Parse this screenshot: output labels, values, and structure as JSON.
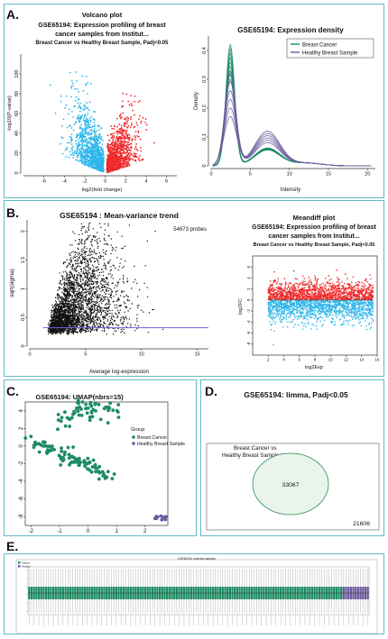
{
  "panels": {
    "a": "A.",
    "b": "B.",
    "c": "C.",
    "d": "D.",
    "e": "E."
  },
  "colors": {
    "border": "#63b9c9",
    "up": "#ee2b2b",
    "down": "#2eb6ea",
    "black": "#111111",
    "breast_cancer": "#1d8c63",
    "healthy": "#6c5b9e",
    "trend_line": "#6a6adf",
    "venn_fill": "#e9f5ec",
    "venn_stroke": "#2e8b57"
  },
  "chart_data": [
    {
      "id": "volcano",
      "type": "scatter",
      "title": "Volcano plot",
      "subtitle": "GSE65194: Expression profiling of breast cancer samples from Institut...",
      "subtitle2": "Breast Cancer vs Healthy Breast Sample, Padj<0.05",
      "xlabel": "log2(fold change)",
      "ylabel": "-log10(P-value)",
      "xlim": [
        -8,
        7
      ],
      "ylim": [
        0,
        120
      ],
      "xticks": [
        -6,
        -4,
        -2,
        0,
        2,
        4,
        6
      ],
      "yticks": [
        0,
        20,
        40,
        60,
        80,
        100
      ],
      "series": [
        {
          "name": "Down",
          "color": "#2eb6ea",
          "x_range": [
            -6,
            0
          ],
          "peak_y": 95
        },
        {
          "name": "Up",
          "color": "#ee2b2b",
          "x_range": [
            0,
            5.5
          ],
          "peak_y": 75
        }
      ]
    },
    {
      "id": "density",
      "type": "line",
      "title": "GSE65194: Expression density",
      "xlabel": "Intensity",
      "ylabel": "Density",
      "xlim": [
        0,
        21
      ],
      "ylim": [
        0,
        0.45
      ],
      "xticks": [
        0,
        5,
        10,
        15,
        20
      ],
      "yticks": [
        0.0,
        0.1,
        0.2,
        0.3,
        0.4
      ],
      "series": [
        {
          "name": "Breast Cancer",
          "color": "#1d8c63",
          "peak_x": 2.4,
          "peak_y": 0.42
        },
        {
          "name": "Healthy Breast Sample",
          "color": "#6c5b9e",
          "peak_x": 2.5,
          "peak_y": 0.36
        }
      ]
    },
    {
      "id": "meanvar",
      "type": "scatter",
      "title": "GSE65194 : Mean-variance trend",
      "annotation": "54673 probes",
      "xlabel": "Average log-expression",
      "ylabel": "sqrt(sigma)",
      "xlim": [
        0,
        16
      ],
      "ylim": [
        0,
        2.2
      ],
      "xticks": [
        0,
        5,
        10,
        15
      ],
      "yticks": [
        0.0,
        0.5,
        1.0,
        1.5,
        2.0
      ],
      "trend_line_y": 0.32
    },
    {
      "id": "meandiff",
      "type": "scatter",
      "title": "Meandiff plot",
      "subtitle": "GSE65194: Expression profiling of breast cancer samples from Institut...",
      "subtitle2": "Breast Cancer vs Healthy Breast Sample, Padj<0.05",
      "xlabel": "log2Exp",
      "ylabel": "log2FC",
      "xlim": [
        0,
        16
      ],
      "ylim": [
        -10,
        8
      ],
      "xticks": [
        2,
        4,
        6,
        8,
        10,
        12,
        14,
        16
      ],
      "yticks": [
        -8,
        -6,
        -4,
        -2,
        0,
        2,
        4,
        6
      ]
    },
    {
      "id": "umap",
      "type": "scatter",
      "title": "GSE65194: UMAP(nbrs=15)",
      "legend_title": "Group",
      "xlim": [
        -2.2,
        2.8
      ],
      "ylim": [
        -9,
        5
      ],
      "xticks": [
        -2,
        -1,
        0,
        1,
        2
      ],
      "yticks": [
        4,
        2,
        0,
        -2,
        -4,
        -6,
        -8
      ],
      "series": [
        {
          "name": "Breast Cancer",
          "color": "#1d8c63"
        },
        {
          "name": "Healthy Breast Sample",
          "color": "#6c5b9e"
        }
      ]
    },
    {
      "id": "venn",
      "type": "venn",
      "title": "GSE65194: limma, Padj<0.05",
      "set_label": "Breast Cancer vs Healthy Breast Sample",
      "inside": 33067,
      "outside": 21606
    },
    {
      "id": "boxplot",
      "type": "bar",
      "title": "GSE65194, selected samples",
      "legend": [
        "Cancer",
        "Healthy"
      ],
      "n_cancer": 130,
      "n_healthy": 11
    }
  ]
}
